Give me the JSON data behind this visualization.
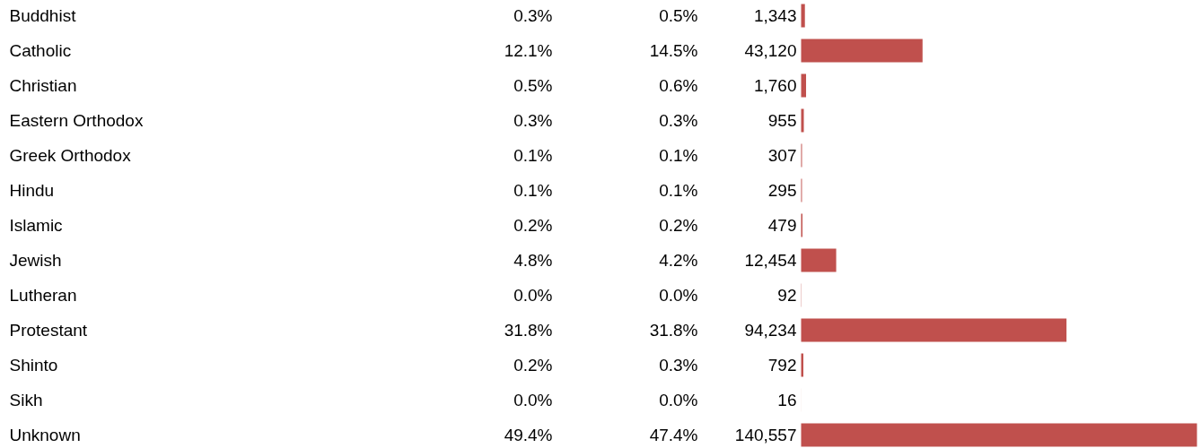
{
  "chart_data": {
    "type": "bar",
    "orientation": "horizontal",
    "grid": false,
    "categories": [
      "Buddhist",
      "Catholic",
      "Christian",
      "Eastern Orthodox",
      "Greek Orthodox",
      "Hindu",
      "Islamic",
      "Jewish",
      "Lutheran",
      "Protestant",
      "Shinto",
      "Sikh",
      "Unknown"
    ],
    "series": [
      {
        "color": "#c0504d",
        "values": [
          1343,
          43120,
          1760,
          955,
          307,
          295,
          479,
          12454,
          92,
          94234,
          792,
          16,
          140557
        ],
        "value_labels": [
          "1,343",
          "43,120",
          "1,760",
          "955",
          "307",
          "295",
          "479",
          "12,454",
          "92",
          "94,234",
          "792",
          "16",
          "140,557"
        ]
      }
    ],
    "annotations": [
      "0.3%",
      "0.5%",
      "12.1%",
      "14.5%",
      "0.5%",
      "0.6%",
      "0.3%",
      "0.3%",
      "0.1%",
      "0.1%",
      "0.1%",
      "0.1%",
      "0.2%",
      "0.2%",
      "4.8%",
      "4.2%",
      "0.0%",
      "0.0%",
      "31.8%",
      "31.8%",
      "0.2%",
      "0.3%",
      "0.0%",
      "0.0%",
      "49.4%",
      "47.4%"
    ]
  }
}
